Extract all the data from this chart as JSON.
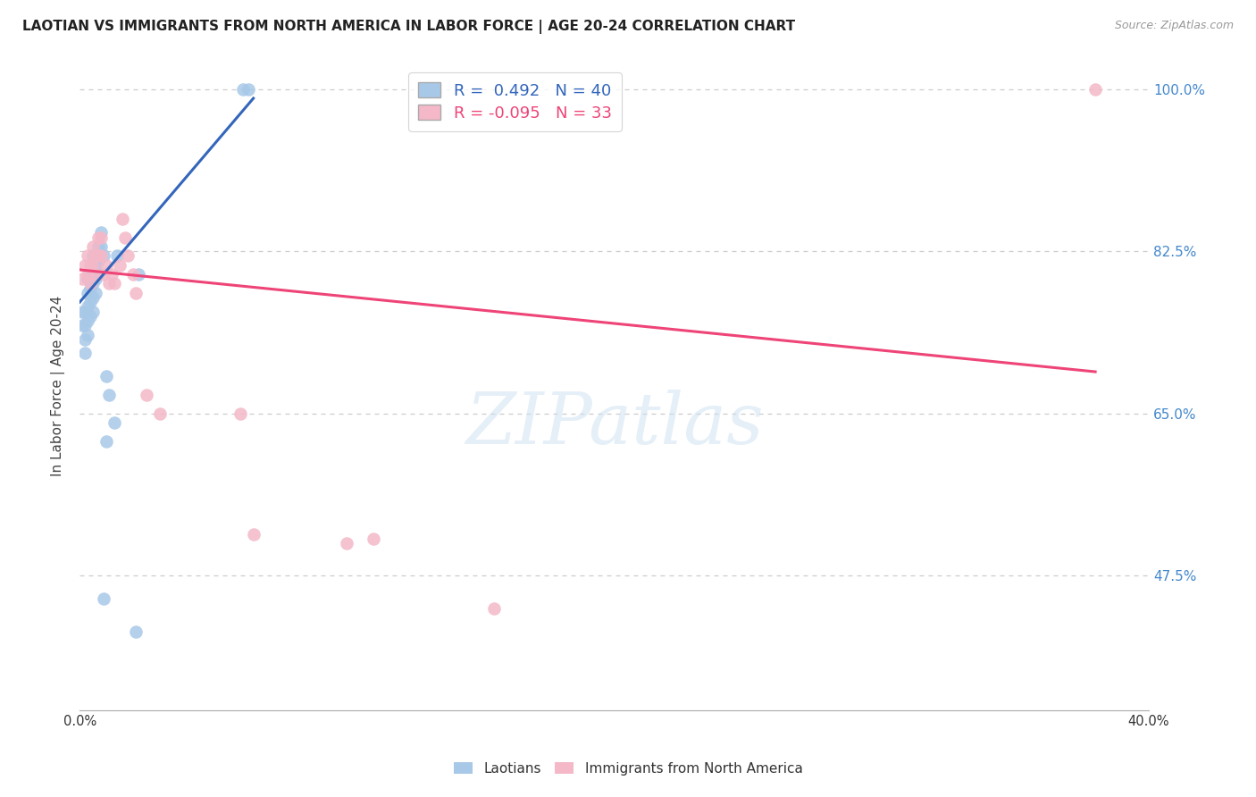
{
  "title": "LAOTIAN VS IMMIGRANTS FROM NORTH AMERICA IN LABOR FORCE | AGE 20-24 CORRELATION CHART",
  "source": "Source: ZipAtlas.com",
  "ylabel": "In Labor Force | Age 20-24",
  "xlim": [
    0.0,
    0.4
  ],
  "ylim": [
    0.33,
    1.03
  ],
  "xtick_positions": [
    0.0,
    0.05,
    0.1,
    0.15,
    0.2,
    0.25,
    0.3,
    0.35,
    0.4
  ],
  "xticklabels": [
    "0.0%",
    "",
    "",
    "",
    "",
    "",
    "",
    "",
    "40.0%"
  ],
  "ytick_right_vals": [
    0.475,
    0.65,
    0.825,
    1.0
  ],
  "ytick_right_labels": [
    "47.5%",
    "65.0%",
    "82.5%",
    "100.0%"
  ],
  "blue_color": "#a8c8e8",
  "pink_color": "#f4b8c8",
  "blue_line_color": "#3366bb",
  "pink_line_color": "#ee4477",
  "grid_color": "#cccccc",
  "background_color": "#ffffff",
  "watermark": "ZIPatlas",
  "title_fontsize": 11,
  "blue_scatter_x": [
    0.001,
    0.001,
    0.002,
    0.002,
    0.002,
    0.002,
    0.003,
    0.003,
    0.003,
    0.003,
    0.003,
    0.004,
    0.004,
    0.004,
    0.004,
    0.005,
    0.005,
    0.005,
    0.005,
    0.005,
    0.006,
    0.006,
    0.006,
    0.007,
    0.007,
    0.007,
    0.008,
    0.008,
    0.009,
    0.009,
    0.01,
    0.01,
    0.011,
    0.013,
    0.014,
    0.021,
    0.022,
    0.061,
    0.063
  ],
  "blue_scatter_y": [
    0.76,
    0.745,
    0.76,
    0.745,
    0.73,
    0.715,
    0.795,
    0.78,
    0.765,
    0.75,
    0.735,
    0.8,
    0.785,
    0.77,
    0.755,
    0.82,
    0.805,
    0.79,
    0.775,
    0.76,
    0.81,
    0.795,
    0.78,
    0.83,
    0.815,
    0.8,
    0.845,
    0.83,
    0.82,
    0.45,
    0.69,
    0.62,
    0.67,
    0.64,
    0.82,
    0.415,
    0.8,
    1.0,
    1.0
  ],
  "pink_scatter_x": [
    0.001,
    0.002,
    0.003,
    0.003,
    0.004,
    0.004,
    0.005,
    0.005,
    0.006,
    0.006,
    0.007,
    0.007,
    0.008,
    0.008,
    0.009,
    0.01,
    0.011,
    0.012,
    0.013,
    0.015,
    0.016,
    0.017,
    0.018,
    0.02,
    0.021,
    0.025,
    0.03,
    0.06,
    0.065,
    0.1,
    0.11,
    0.155,
    0.38
  ],
  "pink_scatter_y": [
    0.795,
    0.81,
    0.82,
    0.8,
    0.81,
    0.79,
    0.83,
    0.81,
    0.82,
    0.8,
    0.84,
    0.82,
    0.84,
    0.82,
    0.8,
    0.81,
    0.79,
    0.8,
    0.79,
    0.81,
    0.86,
    0.84,
    0.82,
    0.8,
    0.78,
    0.67,
    0.65,
    0.65,
    0.52,
    0.51,
    0.515,
    0.44,
    1.0
  ],
  "blue_line_x0": 0.0,
  "blue_line_x1": 0.065,
  "blue_line_y0": 0.77,
  "blue_line_y1": 0.99,
  "pink_line_x0": 0.0,
  "pink_line_x1": 0.38,
  "pink_line_y0": 0.805,
  "pink_line_y1": 0.695
}
